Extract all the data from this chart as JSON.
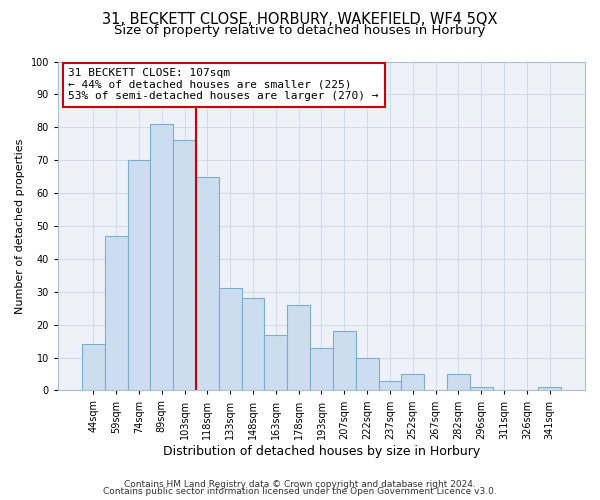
{
  "title": "31, BECKETT CLOSE, HORBURY, WAKEFIELD, WF4 5QX",
  "subtitle": "Size of property relative to detached houses in Horbury",
  "xlabel": "Distribution of detached houses by size in Horbury",
  "ylabel": "Number of detached properties",
  "bar_labels": [
    "44sqm",
    "59sqm",
    "74sqm",
    "89sqm",
    "103sqm",
    "118sqm",
    "133sqm",
    "148sqm",
    "163sqm",
    "178sqm",
    "193sqm",
    "207sqm",
    "222sqm",
    "237sqm",
    "252sqm",
    "267sqm",
    "282sqm",
    "296sqm",
    "311sqm",
    "326sqm",
    "341sqm"
  ],
  "bar_values": [
    14,
    47,
    70,
    81,
    76,
    65,
    31,
    28,
    17,
    26,
    13,
    18,
    10,
    3,
    5,
    0,
    5,
    1,
    0,
    0,
    1
  ],
  "bar_color": "#ccddf0",
  "bar_edge_color": "#7aaed0",
  "vline_color": "#cc0000",
  "vline_pos": 4.5,
  "annotation_text": "31 BECKETT CLOSE: 107sqm\n← 44% of detached houses are smaller (225)\n53% of semi-detached houses are larger (270) →",
  "annotation_box_color": "#ffffff",
  "annotation_box_edge": "#cc0000",
  "ylim": [
    0,
    100
  ],
  "yticks": [
    0,
    10,
    20,
    30,
    40,
    50,
    60,
    70,
    80,
    90,
    100
  ],
  "footer1": "Contains HM Land Registry data © Crown copyright and database right 2024.",
  "footer2": "Contains public sector information licensed under the Open Government Licence v3.0.",
  "title_fontsize": 10.5,
  "subtitle_fontsize": 9.5,
  "xlabel_fontsize": 9,
  "ylabel_fontsize": 8,
  "tick_fontsize": 7,
  "annotation_fontsize": 8,
  "footer_fontsize": 6.5,
  "grid_color": "#d0dcea",
  "background_color": "#eef2f8"
}
